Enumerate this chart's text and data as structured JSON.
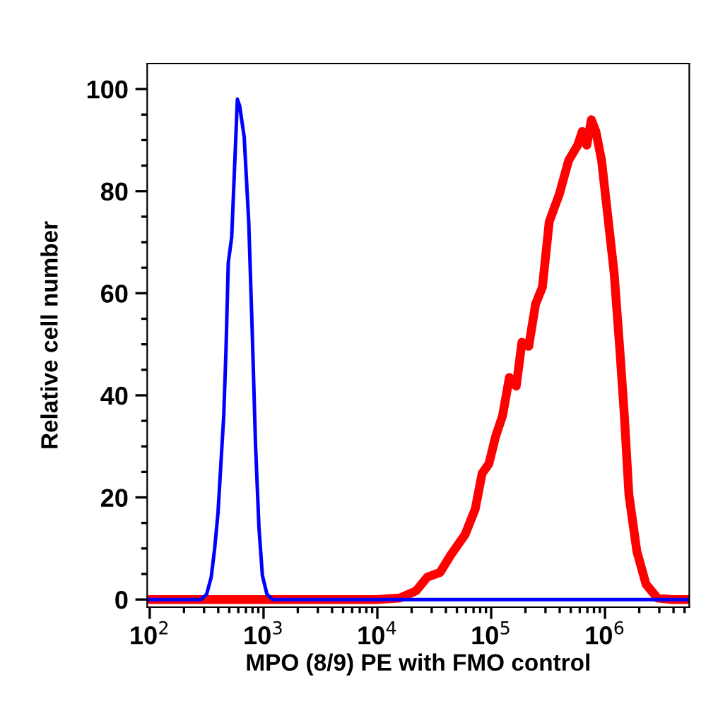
{
  "chart_data": {
    "type": "line",
    "xlabel": "MPO (8/9) PE with FMO control",
    "ylabel": "Relative cell number",
    "log": "x",
    "xlim": [
      95,
      5500000
    ],
    "ylim": [
      -1.5,
      105
    ],
    "xticks": [
      {
        "value": 100,
        "label": "10$^{2}$"
      },
      {
        "value": 1000,
        "label": "10$^{3}$"
      },
      {
        "value": 10000,
        "label": "10$^{4}$"
      },
      {
        "value": 100000,
        "label": "10$^{5}$"
      },
      {
        "value": 1000000,
        "label": "10$^{6}$"
      }
    ],
    "yticks": [
      0,
      {
        "value": 5,
        "label": null
      },
      {
        "value": 10,
        "label": null
      },
      {
        "value": 15,
        "label": null
      },
      20,
      {
        "value": 25,
        "label": null
      },
      {
        "value": 30,
        "label": null
      },
      {
        "value": 35,
        "label": null
      },
      40,
      {
        "value": 45,
        "label": null
      },
      {
        "value": 50,
        "label": null
      },
      {
        "value": 55,
        "label": null
      },
      60,
      {
        "value": 65,
        "label": null
      },
      {
        "value": 70,
        "label": null
      },
      {
        "value": 75,
        "label": null
      },
      80,
      {
        "value": 85,
        "label": null
      },
      {
        "value": 90,
        "label": null
      },
      {
        "value": 95,
        "label": null
      },
      100
    ],
    "grid": false,
    "legend": false,
    "series": [
      {
        "color": "#ff0000",
        "x": [
          100,
          4600,
          9800,
          15800,
          21900,
          27500,
          35500,
          44700,
          58900,
          72400,
          83200,
          95500,
          109600,
          125900,
          144500,
          166000,
          186200,
          213800,
          245500,
          281800,
          323600,
          398100,
          478600,
          575400,
          631000,
          691800,
          758600,
          831800,
          933300,
          1071500,
          1202300,
          1349000,
          1479100,
          1621800,
          1905500,
          2290900,
          2884000,
          3801900,
          5500000
        ],
        "values": [
          0,
          0,
          0,
          0.3,
          1.7,
          4.4,
          5.3,
          8.9,
          12.7,
          17.7,
          24.7,
          26.6,
          32,
          36,
          43.5,
          41.8,
          50.4,
          49.6,
          57.9,
          61.2,
          74,
          79.5,
          86,
          89,
          91.7,
          89,
          94,
          91.7,
          86,
          74,
          64,
          49,
          36,
          20.5,
          9.4,
          3,
          0.3,
          0,
          0
        ]
      },
      {
        "color": "#0000ff",
        "x": [
          95,
          282,
          316,
          347,
          372,
          398,
          447,
          468,
          490,
          525,
          589,
          617,
          676,
          741,
          794,
          851,
          912,
          977,
          1072,
          1202,
          5500000
        ],
        "values": [
          0,
          0,
          1,
          4.4,
          10,
          17,
          36,
          49,
          66,
          71,
          98,
          96.7,
          90.6,
          74,
          53,
          30,
          14,
          4.7,
          1,
          0,
          0
        ]
      }
    ]
  }
}
